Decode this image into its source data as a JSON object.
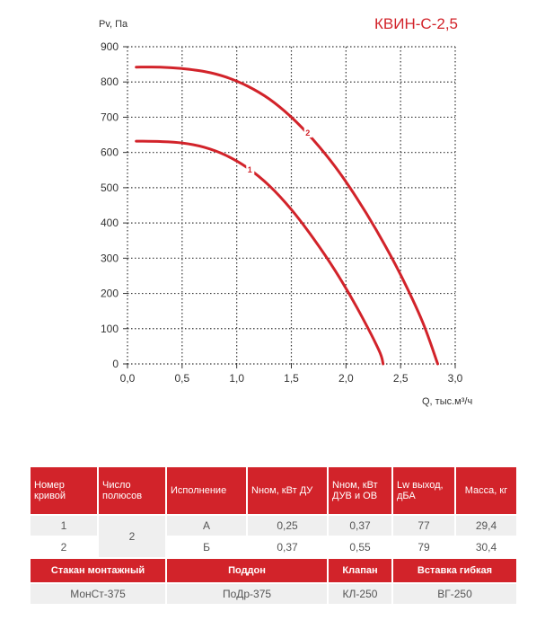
{
  "chart_data": {
    "type": "line",
    "title": "КВИН-С-2,5",
    "xlabel": "Q, тыс.м³/ч",
    "ylabel": "Pv, Па",
    "xlim": [
      0,
      3.0
    ],
    "ylim": [
      0,
      900
    ],
    "x_ticks": [
      "0,0",
      "0,5",
      "1,0",
      "1,5",
      "2,0",
      "2,5",
      "3,0"
    ],
    "y_ticks": [
      "0",
      "100",
      "200",
      "300",
      "400",
      "500",
      "600",
      "700",
      "800",
      "900"
    ],
    "grid": true,
    "series": [
      {
        "name": "1",
        "x": [
          0.08,
          0.3,
          0.5,
          0.7,
          0.9,
          1.1,
          1.3,
          1.5,
          1.7,
          1.9,
          2.1,
          2.3,
          2.34
        ],
        "y": [
          632,
          631,
          627,
          615,
          592,
          556,
          505,
          438,
          357,
          265,
          160,
          40,
          0
        ]
      },
      {
        "name": "2",
        "x": [
          0.08,
          0.3,
          0.5,
          0.7,
          0.9,
          1.1,
          1.3,
          1.5,
          1.7,
          1.9,
          2.1,
          2.3,
          2.5,
          2.7,
          2.84
        ],
        "y": [
          842,
          842,
          838,
          830,
          814,
          788,
          751,
          700,
          636,
          560,
          470,
          368,
          253,
          120,
          0
        ]
      }
    ]
  },
  "table": {
    "headers": [
      "Номер кривой",
      "Число полюсов",
      "Исполнение",
      "Nном, кВт ДУ",
      "Nном, кВт ДУВ и ОВ",
      "Lw выход, дБА",
      "Масса, кг"
    ],
    "rows": [
      {
        "curve": "1",
        "execution": "А",
        "n_du": "0,25",
        "n_duv": "0,37",
        "lw": "77",
        "mass": "29,4"
      },
      {
        "curve": "2",
        "execution": "Б",
        "n_du": "0,37",
        "n_duv": "0,55",
        "lw": "79",
        "mass": "30,4"
      }
    ],
    "poles": "2"
  },
  "accessories": {
    "headers": [
      "Стакан монтажный",
      "Поддон",
      "Клапан",
      "Вставка гибкая"
    ],
    "values": [
      "МонСт-375",
      "ПоДр-375",
      "КЛ-250",
      "ВГ-250"
    ]
  },
  "colors": {
    "accent": "#d2232a",
    "grid": "#333333",
    "row_fill": "#efefef"
  }
}
